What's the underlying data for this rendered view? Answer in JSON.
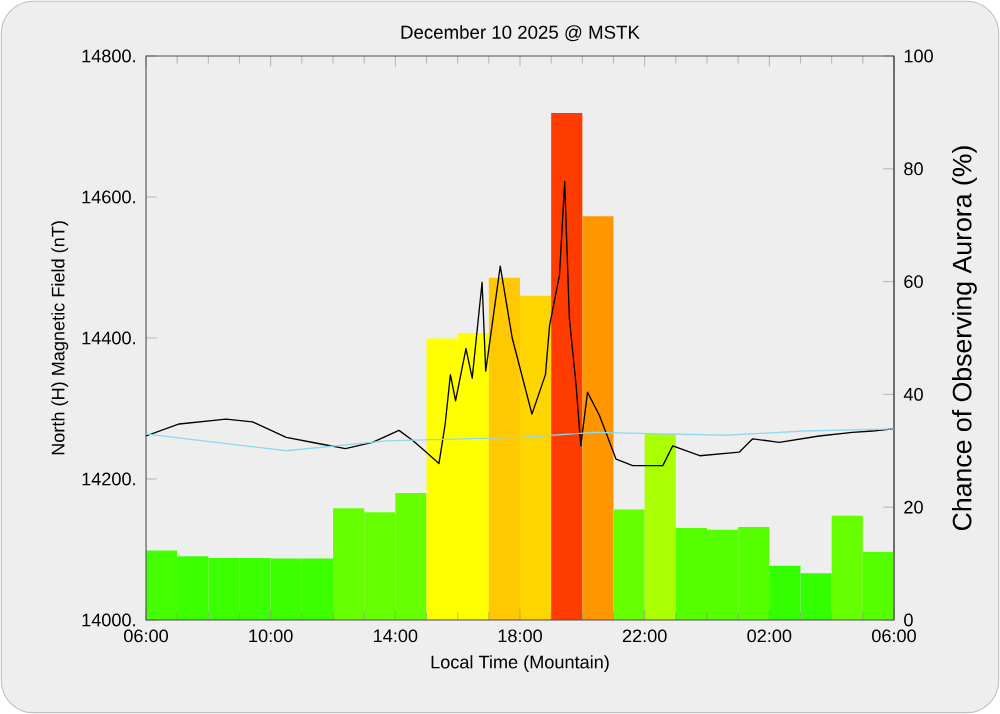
{
  "chart_data": {
    "type": "line",
    "title": "December 10 2025 @ MSTK",
    "xlabel": "Local Time (Mountain)",
    "ylabel": "North (H) Magnetic Field (nT)",
    "y2label": "Chance of Observing Aurora (%)",
    "xlim": [
      "2025-12-10T06:00",
      "2025-12-11T06:00"
    ],
    "xticks": [
      {
        "value": "2025-12-10T06:00",
        "label": "06:00"
      },
      {
        "value": "2025-12-10T10:00",
        "label": "10:00"
      },
      {
        "value": "2025-12-10T14:00",
        "label": "14:00"
      },
      {
        "value": "2025-12-10T18:00",
        "label": "18:00"
      },
      {
        "value": "2025-12-10T22:00",
        "label": "22:00"
      },
      {
        "value": "2025-12-11T02:00",
        "label": "02:00"
      },
      {
        "value": "2025-12-11T06:00",
        "label": "06:00"
      }
    ],
    "ylim": [
      14000,
      14800
    ],
    "yticks": [
      {
        "value": 14000,
        "label": "14000."
      },
      {
        "value": 14200,
        "label": "14200."
      },
      {
        "value": 14400,
        "label": "14400."
      },
      {
        "value": 14600,
        "label": "14600."
      },
      {
        "value": 14800,
        "label": "14800."
      }
    ],
    "y2lim": [
      0,
      100
    ],
    "y2ticks": [
      0,
      20,
      40,
      60,
      80,
      100
    ],
    "grid": false,
    "marker": "none",
    "line_style": "solid",
    "series": [
      {
        "type": "bar",
        "axis": "y2",
        "x": [
          "2025-12-10T06:30",
          "2025-12-10T07:30",
          "2025-12-10T08:30",
          "2025-12-10T09:30",
          "2025-12-10T10:30",
          "2025-12-10T11:30",
          "2025-12-10T12:30",
          "2025-12-10T13:30",
          "2025-12-10T14:30",
          "2025-12-10T15:30",
          "2025-12-10T16:30",
          "2025-12-10T17:30",
          "2025-12-10T18:30",
          "2025-12-10T19:30",
          "2025-12-10T20:30",
          "2025-12-10T21:30",
          "2025-12-10T22:30",
          "2025-12-10T23:30",
          "2025-12-11T00:30",
          "2025-12-11T01:30",
          "2025-12-11T02:30",
          "2025-12-11T03:30",
          "2025-12-11T04:30",
          "2025-12-11T05:30"
        ],
        "values": [
          12.3,
          11.3,
          11,
          11,
          10.9,
          10.9,
          19.8,
          19.1,
          22.5,
          49.9,
          50.9,
          60.7,
          57.5,
          89.9,
          71.6,
          19.6,
          33,
          16.3,
          16,
          16.5,
          9.6,
          8.3,
          18.5,
          12.1
        ],
        "colors": [
          "#44ff00",
          "#3cff00",
          "#3cff00",
          "#3cff00",
          "#3cff00",
          "#3cff00",
          "#66ff00",
          "#66ff00",
          "#66ff00",
          "#ffff00",
          "#ffff00",
          "#ffc800",
          "#ffd500",
          "#ff3c00",
          "#ff9600",
          "#66ff00",
          "#aaff00",
          "#55ff00",
          "#55ff00",
          "#55ff00",
          "#33ff00",
          "#33ff00",
          "#66ff00",
          "#55ff00"
        ]
      },
      {
        "axis": "y",
        "color": "#000000",
        "x": [
          "2025-12-10T06:00",
          "2025-12-10T07:04",
          "2025-12-10T08:34",
          "2025-12-10T09:25",
          "2025-12-10T10:30",
          "2025-12-10T11:34",
          "2025-12-10T12:24",
          "2025-12-10T13:16",
          "2025-12-10T14:07",
          "2025-12-10T14:33",
          "2025-12-10T14:58",
          "2025-12-10T15:24",
          "2025-12-10T15:36",
          "2025-12-10T15:46",
          "2025-12-10T15:56",
          "2025-12-10T16:16",
          "2025-12-10T16:28",
          "2025-12-10T16:47",
          "2025-12-10T16:54",
          "2025-12-10T17:22",
          "2025-12-10T17:45",
          "2025-12-10T18:23",
          "2025-12-10T18:49",
          "2025-12-10T18:57",
          "2025-12-10T19:16",
          "2025-12-10T19:26",
          "2025-12-10T19:35",
          "2025-12-10T19:48",
          "2025-12-10T19:57",
          "2025-12-10T20:10",
          "2025-12-10T20:33",
          "2025-12-10T21:05",
          "2025-12-10T21:37",
          "2025-12-10T22:35",
          "2025-12-10T22:54",
          "2025-12-10T23:46",
          "2025-12-11T01:02",
          "2025-12-11T01:28",
          "2025-12-11T02:19",
          "2025-12-11T03:36",
          "2025-12-11T04:40",
          "2025-12-11T05:19",
          "2025-12-11T05:58"
        ],
        "values": [
          14261,
          14278,
          14285,
          14281,
          14259,
          14250,
          14243,
          14252,
          14269,
          14255,
          14239,
          14222,
          14278,
          14348,
          14311,
          14385,
          14343,
          14479,
          14353,
          14502,
          14400,
          14292,
          14348,
          14418,
          14489,
          14622,
          14428,
          14333,
          14247,
          14323,
          14290,
          14228,
          14219,
          14219,
          14247,
          14233,
          14238,
          14257,
          14252,
          14261,
          14266,
          14268,
          14271
        ]
      },
      {
        "axis": "y",
        "color": "#8fd8f0",
        "x": [
          "2025-12-10T06:00",
          "2025-12-10T07:06",
          "2025-12-10T10:30",
          "2025-12-10T13:42",
          "2025-12-10T18:00",
          "2025-12-10T20:24",
          "2025-12-11T00:36",
          "2025-12-11T03:06",
          "2025-12-11T06:00"
        ],
        "values": [
          14264,
          14258,
          14240,
          14254,
          14259,
          14266,
          14262,
          14268,
          14271
        ]
      }
    ]
  }
}
